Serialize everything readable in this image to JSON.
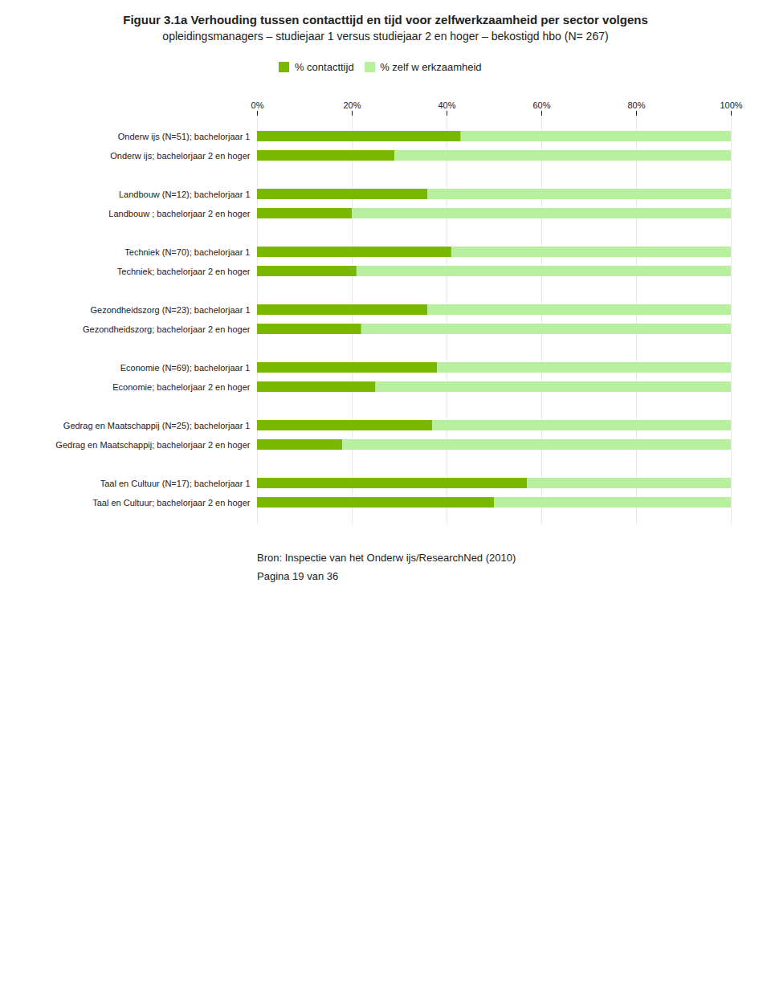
{
  "chart_data": {
    "type": "bar",
    "orientation": "horizontal",
    "stacked": true,
    "title": "Figuur 3.1a Verhouding tussen contacttijd en tijd voor zelfwerkzaamheid per sector volgens",
    "subtitle": "opleidingsmanagers – studiejaar 1 versus studiejaar 2 en hoger – bekostigd hbo (N= 267)",
    "annotations": [
      "Bron: Inspectie van het Onderw ijs/ResearchNed (2010)",
      "Pagina 19 van 36"
    ],
    "categories": [
      "Onderw ijs (N=51); bachelorjaar 1",
      "Onderw ijs; bachelorjaar 2 en hoger",
      null,
      "Landbouw (N=12); bachelorjaar 1",
      "Landbouw ; bachelorjaar 2 en hoger",
      null,
      "Techniek (N=70); bachelorjaar 1",
      "Techniek; bachelorjaar 2 en hoger",
      null,
      "Gezondheidszorg (N=23); bachelorjaar 1",
      "Gezondheidszorg; bachelorjaar 2 en hoger",
      null,
      "Economie (N=69); bachelorjaar 1",
      "Economie; bachelorjaar 2 en hoger",
      null,
      "Gedrag en Maatschappij (N=25); bachelorjaar 1",
      "Gedrag en Maatschappij; bachelorjaar 2 en hoger",
      null,
      "Taal en Cultuur (N=17); bachelorjaar 1",
      "Taal en Cultuur; bachelorjaar 2 en hoger"
    ],
    "series": [
      {
        "name": "% contacttijd",
        "color": "#7ab800",
        "values": [
          43,
          29,
          0,
          36,
          20,
          0,
          41,
          21,
          0,
          36,
          22,
          0,
          38,
          25,
          0,
          37,
          18,
          0,
          57,
          50
        ]
      },
      {
        "name": "% zelf w erkzaamheid",
        "color": "#b8f0a0",
        "values": [
          57,
          71,
          0,
          64,
          80,
          0,
          59,
          79,
          0,
          64,
          78,
          0,
          62,
          75,
          0,
          63,
          82,
          0,
          43,
          50
        ]
      }
    ],
    "xlim": [
      0,
      100
    ],
    "xticks": [
      {
        "value": 0,
        "label": "0%"
      },
      {
        "value": 20,
        "label": "20%"
      },
      {
        "value": 40,
        "label": "40%"
      },
      {
        "value": 60,
        "label": "60%"
      },
      {
        "value": 80,
        "label": "80%"
      },
      {
        "value": 100,
        "label": "100%"
      }
    ],
    "grid": true,
    "legend": "top"
  }
}
